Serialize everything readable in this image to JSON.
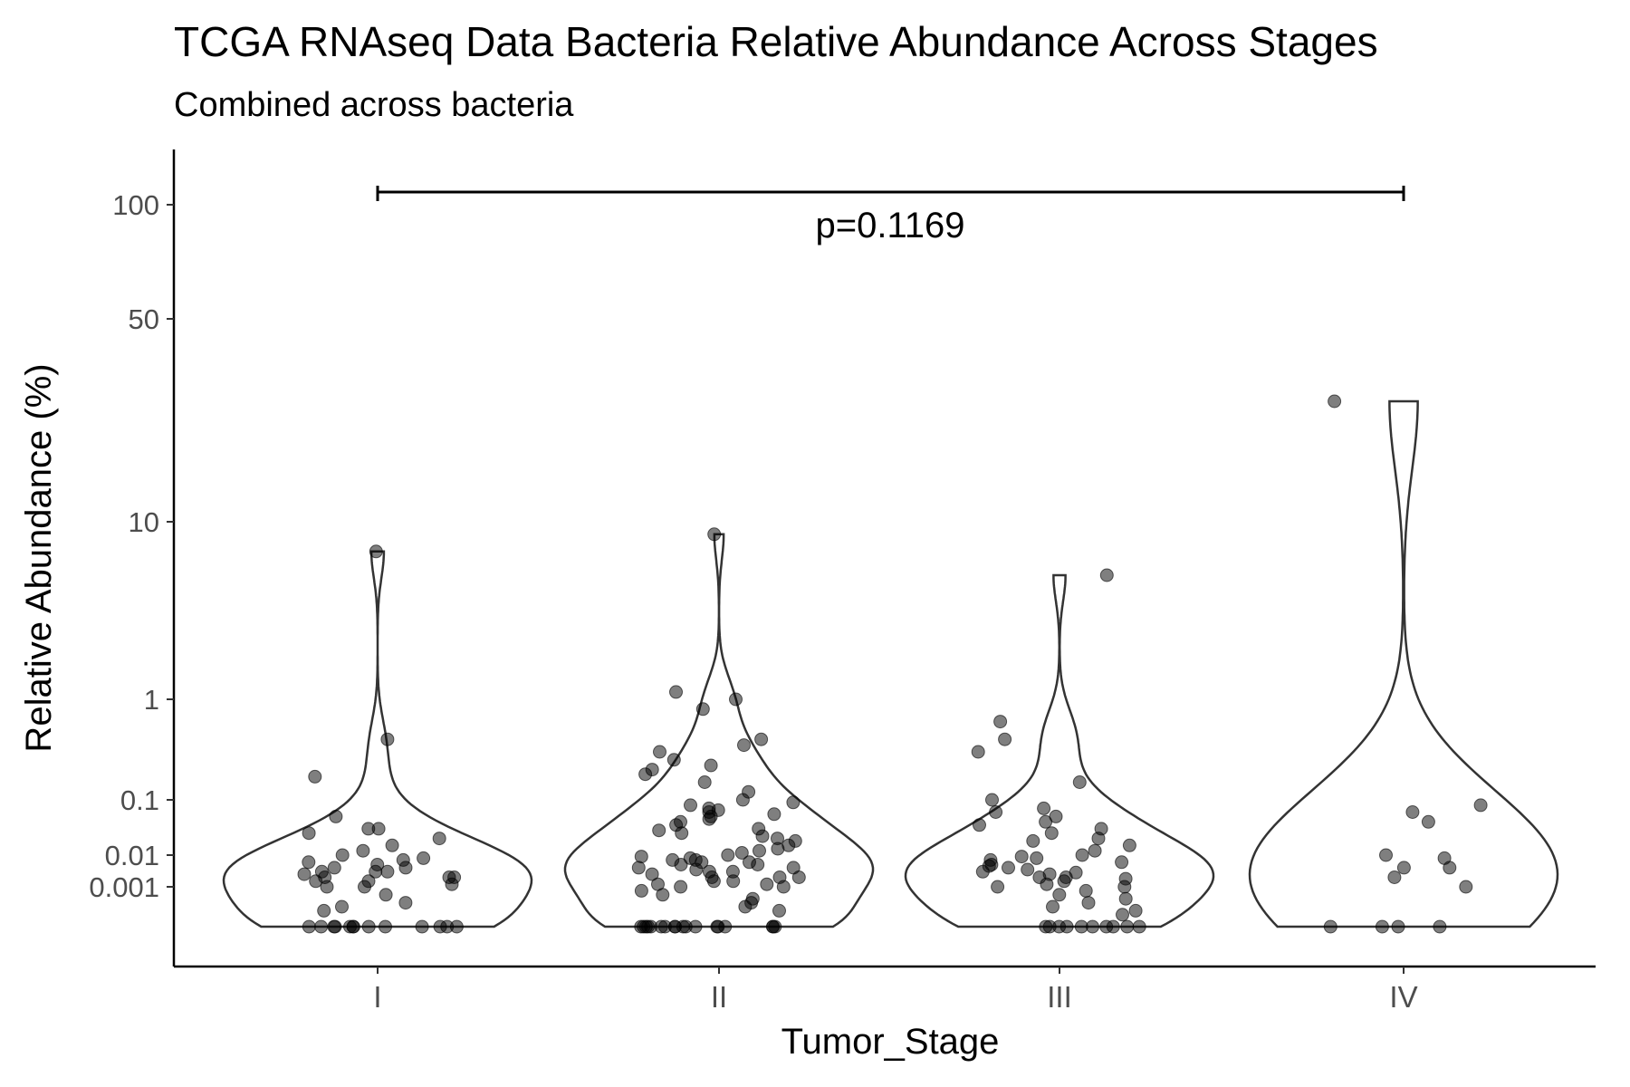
{
  "chart_data": {
    "type": "violin",
    "title": "TCGA RNAseq Data Bacteria Relative Abundance Across Stages",
    "subtitle": "Combined across bacteria",
    "xlabel": "Tumor_Stage",
    "ylabel": "Relative Abundance (%)",
    "y_scale": "pseudo-log",
    "y_ticks": [
      0.001,
      0.01,
      0.1,
      1,
      10,
      50,
      100
    ],
    "y_tick_labels": [
      "0.001",
      "0.01",
      "0.1",
      "1",
      "10",
      "50",
      "100"
    ],
    "categories": [
      "I",
      "II",
      "III",
      "IV"
    ],
    "comparison": {
      "from": "I",
      "to": "IV",
      "label": "p=0.1169"
    },
    "colors": {
      "points": "#000000",
      "violin_stroke": "#333333",
      "axis": "#000000"
    },
    "points": [
      {
        "stage": "I",
        "values": [
          6.8,
          0.4,
          0.17,
          0.05,
          0.03,
          0.03,
          0.025,
          0.02,
          0.015,
          0.012,
          0.01,
          0.008,
          0.007,
          0.006,
          0.005,
          0.004,
          0.004,
          0.003,
          0.003,
          0.003,
          0.002,
          0.0025,
          0.002,
          0.002,
          0.0015,
          0.0015,
          0.0012,
          0.001,
          0.001,
          0.0008,
          0.0006,
          0.0005,
          0.0004,
          0,
          0,
          0,
          0,
          0,
          0,
          0,
          0,
          0,
          0,
          0,
          0,
          0
        ]
      },
      {
        "stage": "II",
        "values": [
          8.5,
          1.1,
          1.0,
          0.8,
          0.4,
          0.35,
          0.3,
          0.25,
          0.22,
          0.2,
          0.18,
          0.15,
          0.12,
          0.1,
          0.09,
          0.08,
          0.07,
          0.065,
          0.06,
          0.055,
          0.05,
          0.045,
          0.04,
          0.035,
          0.03,
          0.028,
          0.025,
          0.022,
          0.02,
          0.018,
          0.015,
          0.013,
          0.012,
          0.011,
          0.01,
          0.009,
          0.008,
          0.007,
          0.007,
          0.006,
          0.006,
          0.005,
          0.005,
          0.004,
          0.004,
          0.0035,
          0.003,
          0.003,
          0.0025,
          0.002,
          0.002,
          0.002,
          0.0015,
          0.0015,
          0.0012,
          0.0012,
          0.001,
          0.001,
          0.0009,
          0.0008,
          0.0007,
          0.0006,
          0.0005,
          0.0004,
          0,
          0,
          0,
          0,
          0,
          0,
          0,
          0,
          0,
          0,
          0,
          0,
          0,
          0,
          0,
          0,
          0,
          0
        ]
      },
      {
        "stage": "III",
        "values": [
          5.0,
          0.6,
          0.4,
          0.3,
          0.15,
          0.1,
          0.07,
          0.06,
          0.05,
          0.04,
          0.035,
          0.03,
          0.025,
          0.02,
          0.018,
          0.015,
          0.012,
          0.01,
          0.009,
          0.008,
          0.007,
          0.006,
          0.005,
          0.0045,
          0.004,
          0.0035,
          0.003,
          0.0028,
          0.0025,
          0.002,
          0.002,
          0.0018,
          0.0015,
          0.0012,
          0.001,
          0.001,
          0.0009,
          0.0008,
          0.0007,
          0.0006,
          0.0005,
          0.0004,
          0.0003,
          0,
          0,
          0,
          0,
          0,
          0,
          0,
          0,
          0,
          0
        ]
      },
      {
        "stage": "IV",
        "values": [
          26,
          0.08,
          0.06,
          0.04,
          0.01,
          0.008,
          0.004,
          0.004,
          0.002,
          0.001,
          0,
          0,
          0,
          0
        ]
      }
    ]
  }
}
